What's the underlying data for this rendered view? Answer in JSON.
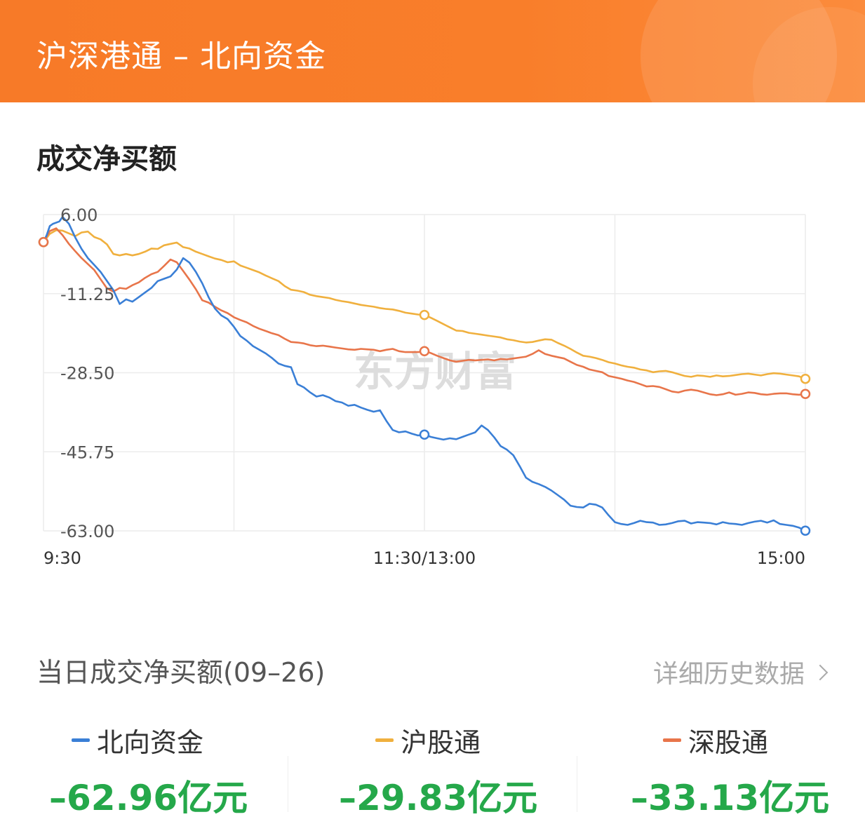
{
  "header": {
    "title": "沪深港通 – 北向资金"
  },
  "section": {
    "title": "成交净买额"
  },
  "watermark": "东方财富",
  "daily": {
    "title": "当日成交净买额(09–26)",
    "history_link": "详细历史数据"
  },
  "summary": [
    {
      "name": "北向资金",
      "value": "–62.96亿元",
      "color": "#3a7fd6"
    },
    {
      "name": "沪股通",
      "value": "–29.83亿元",
      "color": "#f0b03e"
    },
    {
      "name": "深股通",
      "value": "–33.13亿元",
      "color": "#e8754a"
    }
  ],
  "colors": {
    "header": "#f77a28",
    "positive": "#e23b3b",
    "negative": "#25a84a"
  },
  "chart_data": {
    "type": "line",
    "xlabel": "",
    "ylabel": "",
    "ylim": [
      -63,
      6
    ],
    "yticks": [
      "6.00",
      "-11.25",
      "-28.50",
      "-45.75",
      "-63.00"
    ],
    "ytick_values": [
      6,
      -11.25,
      -28.5,
      -45.75,
      -63
    ],
    "xticks": [
      "9:30",
      "11:30/13:00",
      "15:00"
    ],
    "xtick_minutes": [
      0,
      120,
      240
    ],
    "grid": true,
    "series": [
      {
        "name": "北向资金",
        "color": "#3a7fd6",
        "x": [
          0,
          1,
          2,
          3,
          5,
          6,
          8,
          10,
          12,
          14,
          16,
          18,
          20,
          22,
          24,
          26,
          28,
          30,
          32,
          34,
          36,
          38,
          40,
          42,
          44,
          46,
          48,
          50,
          52,
          54,
          56,
          58,
          60,
          62,
          64,
          66,
          68,
          70,
          72,
          74,
          76,
          78,
          80,
          82,
          84,
          86,
          88,
          90,
          92,
          94,
          96,
          98,
          100,
          102,
          104,
          106,
          108,
          110,
          112,
          114,
          116,
          118,
          120,
          122,
          124,
          126,
          128,
          130,
          132,
          134,
          136,
          138,
          140,
          142,
          144,
          146,
          148,
          150,
          152,
          154,
          156,
          158,
          160,
          162,
          164,
          166,
          168,
          170,
          172,
          174,
          176,
          178,
          180,
          182,
          184,
          186,
          188,
          190,
          192,
          194,
          196,
          198,
          200,
          202,
          204,
          206,
          208,
          210,
          212,
          214,
          216,
          218,
          220,
          222,
          224,
          226,
          228,
          230,
          232,
          234,
          236,
          238,
          240
        ],
        "values": [
          0,
          1.5,
          3.5,
          4,
          4.5,
          5.5,
          4,
          1,
          -1.5,
          -3.5,
          -5,
          -6.5,
          -8.5,
          -10.5,
          -13.5,
          -12.5,
          -13,
          -12,
          -11,
          -10,
          -8.5,
          -8,
          -7.5,
          -6,
          -3.5,
          -4.5,
          -6.5,
          -9,
          -12,
          -14.5,
          -16,
          -16.8,
          -18.5,
          -20.5,
          -21.5,
          -22.7,
          -23.5,
          -24.3,
          -25.3,
          -26.5,
          -27,
          -27.3,
          -31,
          -31.7,
          -32.8,
          -33.7,
          -33.4,
          -33.9,
          -34.7,
          -35,
          -35.7,
          -35.5,
          -36.1,
          -36.6,
          -37,
          -36.7,
          -39,
          -41,
          -41.5,
          -41.3,
          -41.8,
          -42.2,
          -42,
          -42.5,
          -42.8,
          -43.1,
          -42.8,
          -43,
          -42.5,
          -42,
          -41.5,
          -40,
          -41,
          -42.6,
          -44.5,
          -45.3,
          -46.5,
          -48.9,
          -51.4,
          -52.3,
          -52.8,
          -53.4,
          -54.2,
          -55.2,
          -56.2,
          -57.5,
          -57.8,
          -57.9,
          -57.1,
          -57.3,
          -57.9,
          -59.6,
          -61.1,
          -61.5,
          -61.7,
          -61.3,
          -60.8,
          -61.1,
          -61.2,
          -61.7,
          -61.6,
          -61.3,
          -60.9,
          -60.8,
          -61.4,
          -61.1,
          -61.2,
          -61.3,
          -61.6,
          -61.1,
          -61.4,
          -61.5,
          -61.7,
          -61.3,
          -61,
          -60.8,
          -61.2,
          -60.7,
          -61.5,
          -61.7,
          -61.9,
          -62.3,
          -62.96
        ]
      },
      {
        "name": "沪股通",
        "color": "#f0b03e",
        "x": [
          0,
          2,
          4,
          6,
          8,
          10,
          12,
          14,
          16,
          18,
          20,
          22,
          24,
          26,
          28,
          30,
          32,
          34,
          36,
          38,
          40,
          42,
          44,
          46,
          48,
          50,
          52,
          54,
          56,
          58,
          60,
          62,
          64,
          66,
          68,
          70,
          72,
          74,
          76,
          78,
          80,
          82,
          84,
          86,
          88,
          90,
          92,
          94,
          96,
          98,
          100,
          102,
          104,
          106,
          108,
          110,
          112,
          114,
          116,
          118,
          120,
          122,
          124,
          126,
          128,
          130,
          132,
          134,
          136,
          138,
          140,
          142,
          144,
          146,
          148,
          150,
          152,
          154,
          156,
          158,
          160,
          162,
          164,
          166,
          168,
          170,
          172,
          174,
          176,
          178,
          180,
          182,
          184,
          186,
          188,
          190,
          192,
          194,
          196,
          198,
          200,
          202,
          204,
          206,
          208,
          210,
          212,
          214,
          216,
          218,
          220,
          222,
          224,
          226,
          228,
          230,
          232,
          234,
          236,
          238,
          240
        ],
        "values": [
          0,
          1.8,
          2.6,
          2.5,
          1.9,
          1.3,
          2.1,
          2.3,
          1.1,
          0.6,
          -0.5,
          -2.6,
          -2.9,
          -2.6,
          -2.9,
          -2.6,
          -2.1,
          -1.4,
          -1.5,
          -0.7,
          -0.4,
          -0.1,
          -1.1,
          -1.4,
          -2.1,
          -2.6,
          -3.1,
          -3.6,
          -3.9,
          -4.4,
          -4.2,
          -5.1,
          -5.6,
          -6.1,
          -6.6,
          -7.3,
          -7.9,
          -8.5,
          -9.6,
          -10.4,
          -10.6,
          -10.9,
          -11.5,
          -11.8,
          -12,
          -12.2,
          -12.6,
          -12.9,
          -13.1,
          -13.4,
          -13.7,
          -13.9,
          -14.1,
          -14.4,
          -14.6,
          -14.7,
          -15,
          -15.4,
          -15.6,
          -15.8,
          -15.9,
          -16.5,
          -17.2,
          -17.9,
          -18.6,
          -19.3,
          -19.4,
          -19.8,
          -20,
          -20.2,
          -20.4,
          -20.6,
          -20.8,
          -21.2,
          -21.4,
          -21.7,
          -21.9,
          -21.8,
          -21.5,
          -21.2,
          -21.3,
          -22,
          -22.6,
          -23.3,
          -24.1,
          -24.8,
          -25,
          -25.3,
          -25.7,
          -26.2,
          -26.5,
          -26.9,
          -27.2,
          -27.4,
          -27.8,
          -28,
          -28.4,
          -28.2,
          -28.1,
          -28.4,
          -28.8,
          -29.2,
          -29.4,
          -29.1,
          -29.2,
          -29.4,
          -29.1,
          -29.3,
          -29.2,
          -29,
          -28.8,
          -28.7,
          -28.9,
          -29.1,
          -28.8,
          -28.6,
          -28.7,
          -28.9,
          -29.1,
          -29.3,
          -29.83
        ]
      },
      {
        "name": "深股通",
        "color": "#e8754a",
        "x": [
          0,
          2,
          4,
          6,
          8,
          10,
          12,
          14,
          16,
          18,
          20,
          22,
          24,
          26,
          28,
          30,
          32,
          34,
          36,
          38,
          40,
          42,
          44,
          46,
          48,
          50,
          52,
          54,
          56,
          58,
          60,
          62,
          64,
          66,
          68,
          70,
          72,
          74,
          76,
          78,
          80,
          82,
          84,
          86,
          88,
          90,
          92,
          94,
          96,
          98,
          100,
          102,
          104,
          106,
          108,
          110,
          112,
          114,
          116,
          118,
          120,
          122,
          124,
          126,
          128,
          130,
          132,
          134,
          136,
          138,
          140,
          142,
          144,
          146,
          148,
          150,
          152,
          154,
          156,
          158,
          160,
          162,
          164,
          166,
          168,
          170,
          172,
          174,
          176,
          178,
          180,
          182,
          184,
          186,
          188,
          190,
          192,
          194,
          196,
          198,
          200,
          202,
          204,
          206,
          208,
          210,
          212,
          214,
          216,
          218,
          220,
          222,
          224,
          226,
          228,
          230,
          232,
          234,
          236,
          238,
          240
        ],
        "values": [
          0,
          2.4,
          3,
          1.5,
          -0.4,
          -2,
          -3.5,
          -4.8,
          -6.1,
          -8.1,
          -10.1,
          -10.8,
          -10,
          -10.2,
          -9.4,
          -8.8,
          -7.8,
          -7,
          -6.5,
          -5.2,
          -3.8,
          -4.4,
          -6.3,
          -8.2,
          -10.3,
          -12.7,
          -13.2,
          -14.1,
          -14.9,
          -15.5,
          -16.4,
          -17,
          -17.5,
          -18.3,
          -18.9,
          -19.4,
          -19.9,
          -20.3,
          -21.1,
          -21.8,
          -21.9,
          -22.1,
          -22.5,
          -22.7,
          -22.6,
          -22.8,
          -23,
          -23.2,
          -23.4,
          -23.5,
          -23.3,
          -23.4,
          -23.5,
          -23.8,
          -23.5,
          -23.3,
          -23.8,
          -24,
          -24,
          -24,
          -23.8,
          -24.2,
          -24.8,
          -25.3,
          -25.8,
          -26.1,
          -25.9,
          -25.7,
          -25.8,
          -25.7,
          -25.6,
          -25.8,
          -25.5,
          -25.6,
          -25.4,
          -25.2,
          -25,
          -24.4,
          -23.6,
          -24.4,
          -24.8,
          -25.1,
          -25.4,
          -26.1,
          -26.8,
          -27.2,
          -27.8,
          -28.1,
          -28.4,
          -29.2,
          -29.5,
          -29.8,
          -30.2,
          -30.5,
          -31,
          -31.5,
          -31.4,
          -31.6,
          -32.1,
          -32.6,
          -32.8,
          -32.4,
          -32.2,
          -32.4,
          -32.8,
          -33.2,
          -33.4,
          -33.2,
          -32.8,
          -33.3,
          -33.1,
          -32.8,
          -32.9,
          -33.2,
          -33.3,
          -33.1,
          -33,
          -33,
          -33.2,
          -33.3,
          -33.13
        ]
      }
    ],
    "markers": [
      {
        "series": 0,
        "x": [
          0,
          120,
          240
        ]
      },
      {
        "series": 1,
        "x": [
          0,
          120,
          240
        ]
      },
      {
        "series": 2,
        "x": [
          0,
          120,
          240
        ]
      }
    ]
  }
}
